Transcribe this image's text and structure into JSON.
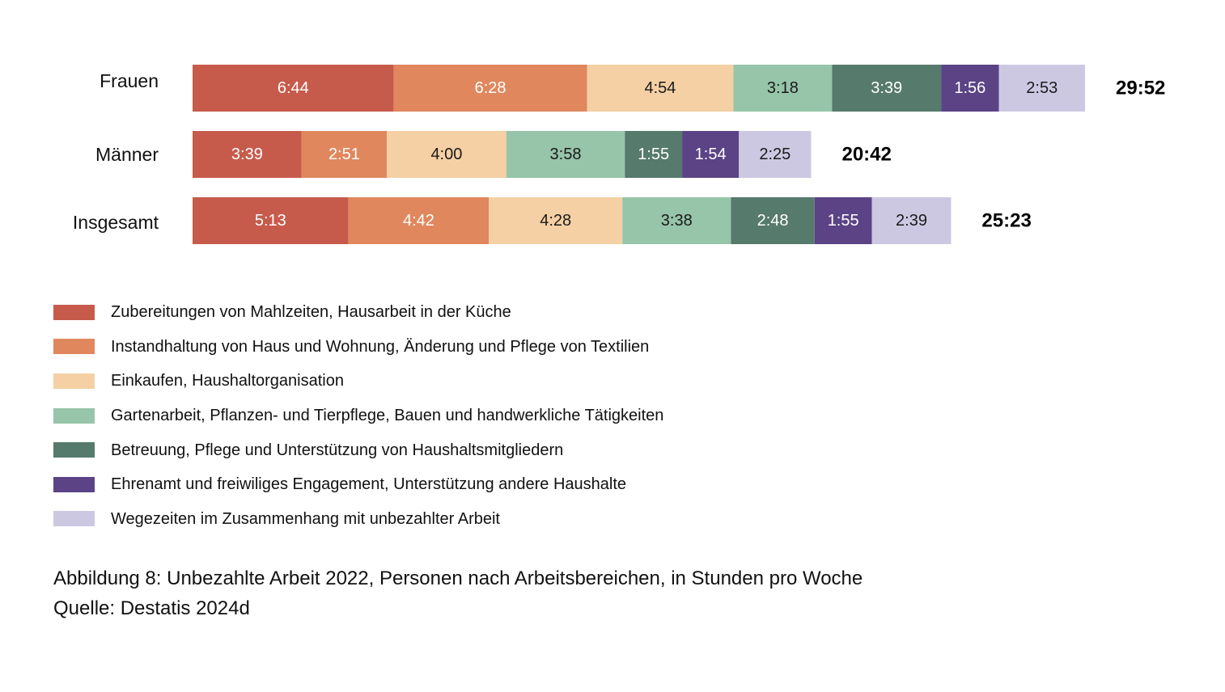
{
  "chart_data": {
    "type": "bar",
    "orientation": "horizontal",
    "stacked": true,
    "unit": "hours:minutes per week",
    "categories": [
      "Frauen",
      "Männer",
      "Insgesamt"
    ],
    "series": [
      {
        "name": "Zubereitungen von Mahlzeiten, Hausarbeit in der Küche",
        "color": "#c75b4b",
        "label_color": "#ffffff",
        "values": [
          6.7333,
          3.65,
          5.2167
        ],
        "labels": [
          "6:44",
          "3:39",
          "5:13"
        ]
      },
      {
        "name": "Instandhaltung von Haus und Wohnung, Änderung und Pflege von Textilien",
        "color": "#e0875d",
        "label_color": "#ffffff",
        "values": [
          6.4667,
          2.85,
          4.7
        ],
        "labels": [
          "6:28",
          "2:51",
          "4:42"
        ]
      },
      {
        "name": "Einkaufen, Haushaltorganisation",
        "color": "#f5d0a4",
        "label_color": "#1a1a1a",
        "values": [
          4.9,
          4.0,
          4.4667
        ],
        "labels": [
          "4:54",
          "4:00",
          "4:28"
        ]
      },
      {
        "name": "Gartenarbeit, Pflanzen- und Tierpflege, Bauen und handwerkliche Tätigkeiten",
        "color": "#96c5a9",
        "label_color": "#1a1a1a",
        "values": [
          3.3,
          3.9667,
          3.6333
        ],
        "labels": [
          "3:18",
          "3:58",
          "3:38"
        ]
      },
      {
        "name": "Betreuung, Pflege und Unterstützung von Haushaltsmitgliedern",
        "color": "#567a6c",
        "label_color": "#ffffff",
        "values": [
          3.65,
          1.9167,
          2.8
        ],
        "labels": [
          "3:39",
          "1:55",
          "2:48"
        ]
      },
      {
        "name": "Ehrenamt und freiwiliges Engagement, Unterstützung andere Haushalte",
        "color": "#5b4386",
        "label_color": "#ffffff",
        "values": [
          1.9333,
          1.9,
          1.9167
        ],
        "labels": [
          "1:56",
          "1:54",
          "1:55"
        ]
      },
      {
        "name": "Wegezeiten im Zusammenhang mit unbezahlter Arbeit",
        "color": "#cdc8e2",
        "label_color": "#1a1a1a",
        "values": [
          2.8833,
          2.4167,
          2.65
        ],
        "labels": [
          "2:53",
          "2:25",
          "2:39"
        ]
      }
    ],
    "totals": [
      29.8667,
      20.7,
      25.3833
    ],
    "total_labels": [
      "29:52",
      "20:42",
      "25:23"
    ],
    "xlim": [
      0,
      30
    ],
    "grid": false,
    "legend_position": "bottom"
  },
  "caption": {
    "title": "Abbildung 8: Unbezahlte Arbeit 2022, Personen nach Arbeitsbereichen, in Stunden pro Woche",
    "source": "Quelle: Destatis 2024d"
  }
}
